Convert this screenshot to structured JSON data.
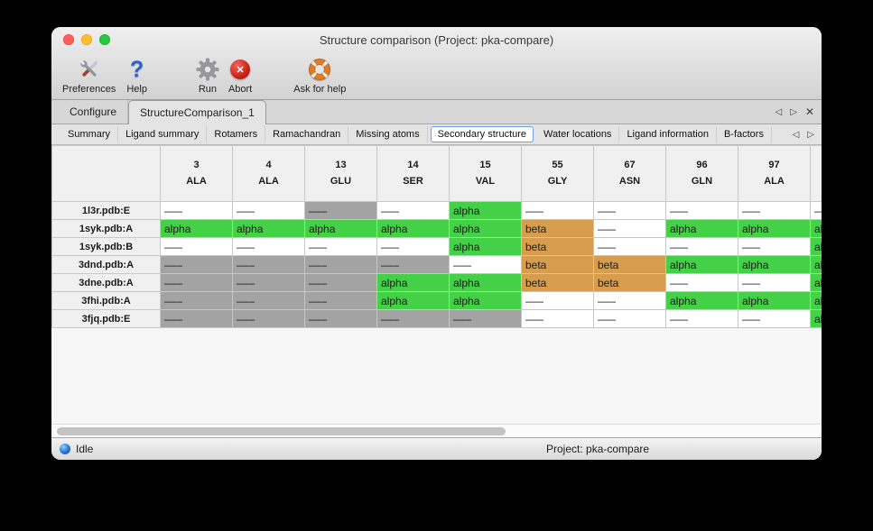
{
  "window": {
    "title": "Structure comparison (Project: pka-compare)"
  },
  "toolbar": {
    "items": [
      {
        "label": "Preferences"
      },
      {
        "label": "Help"
      },
      {
        "label": "Run"
      },
      {
        "label": "Abort"
      },
      {
        "label": "Ask for help"
      }
    ]
  },
  "tab_controls": {
    "prev": "◁",
    "next": "▷",
    "close": "✕"
  },
  "tabs": {
    "main": [
      {
        "label": "Configure",
        "active": false
      },
      {
        "label": "StructureComparison_1",
        "active": true
      }
    ],
    "sub": [
      {
        "label": "Summary",
        "active": false
      },
      {
        "label": "Ligand summary",
        "active": false
      },
      {
        "label": "Rotamers",
        "active": false
      },
      {
        "label": "Ramachandran",
        "active": false
      },
      {
        "label": "Missing atoms",
        "active": false
      },
      {
        "label": "Secondary structure",
        "active": true
      },
      {
        "label": "Water locations",
        "active": false
      },
      {
        "label": "Ligand information",
        "active": false
      },
      {
        "label": "B-factors",
        "active": false
      }
    ]
  },
  "colors": {
    "alpha_green": "#44d148",
    "beta_orange": "#d79d4e",
    "unassigned_gray": "#a3a3a3",
    "plain_white": "#ffffff",
    "active_subtab_border": "#6f9fe8"
  },
  "table": {
    "columns": [
      {
        "num": "3",
        "res": "ALA"
      },
      {
        "num": "4",
        "res": "ALA"
      },
      {
        "num": "13",
        "res": "GLU"
      },
      {
        "num": "14",
        "res": "SER"
      },
      {
        "num": "15",
        "res": "VAL"
      },
      {
        "num": "55",
        "res": "GLY"
      },
      {
        "num": "67",
        "res": "ASN"
      },
      {
        "num": "96",
        "res": "GLN"
      },
      {
        "num": "97",
        "res": "ALA"
      },
      {
        "num": "",
        "res": ""
      }
    ],
    "rows": [
      {
        "name": "1l3r.pdb:E",
        "cells": [
          [
            "–––",
            "plain"
          ],
          [
            "–––",
            "plain"
          ],
          [
            "–––",
            "gray"
          ],
          [
            "–––",
            "plain"
          ],
          [
            "alpha",
            "alpha"
          ],
          [
            "–––",
            "plain"
          ],
          [
            "–––",
            "plain"
          ],
          [
            "–––",
            "plain"
          ],
          [
            "–––",
            "plain"
          ],
          [
            "–––",
            "plain"
          ]
        ]
      },
      {
        "name": "1syk.pdb:A",
        "cells": [
          [
            "alpha",
            "alpha"
          ],
          [
            "alpha",
            "alpha"
          ],
          [
            "alpha",
            "alpha"
          ],
          [
            "alpha",
            "alpha"
          ],
          [
            "alpha",
            "alpha"
          ],
          [
            "beta",
            "beta"
          ],
          [
            "–––",
            "plain"
          ],
          [
            "alpha",
            "alpha"
          ],
          [
            "alpha",
            "alpha"
          ],
          [
            "alpha",
            "alpha"
          ]
        ]
      },
      {
        "name": "1syk.pdb:B",
        "cells": [
          [
            "–––",
            "plain"
          ],
          [
            "–––",
            "plain"
          ],
          [
            "–––",
            "plain"
          ],
          [
            "–––",
            "plain"
          ],
          [
            "alpha",
            "alpha"
          ],
          [
            "beta",
            "beta"
          ],
          [
            "–––",
            "plain"
          ],
          [
            "–––",
            "plain"
          ],
          [
            "–––",
            "plain"
          ],
          [
            "alpha",
            "alpha"
          ]
        ]
      },
      {
        "name": "3dnd.pdb:A",
        "cells": [
          [
            "–––",
            "gray"
          ],
          [
            "–––",
            "gray"
          ],
          [
            "–––",
            "gray"
          ],
          [
            "–––",
            "gray"
          ],
          [
            "–––",
            "plain"
          ],
          [
            "beta",
            "beta"
          ],
          [
            "beta",
            "beta"
          ],
          [
            "alpha",
            "alpha"
          ],
          [
            "alpha",
            "alpha"
          ],
          [
            "alpha",
            "alpha"
          ]
        ]
      },
      {
        "name": "3dne.pdb:A",
        "cells": [
          [
            "–––",
            "gray"
          ],
          [
            "–––",
            "gray"
          ],
          [
            "–––",
            "gray"
          ],
          [
            "alpha",
            "alpha"
          ],
          [
            "alpha",
            "alpha"
          ],
          [
            "beta",
            "beta"
          ],
          [
            "beta",
            "beta"
          ],
          [
            "–––",
            "plain"
          ],
          [
            "–––",
            "plain"
          ],
          [
            "alpha",
            "alpha"
          ]
        ]
      },
      {
        "name": "3fhi.pdb:A",
        "cells": [
          [
            "–––",
            "gray"
          ],
          [
            "–––",
            "gray"
          ],
          [
            "–––",
            "gray"
          ],
          [
            "alpha",
            "alpha"
          ],
          [
            "alpha",
            "alpha"
          ],
          [
            "–––",
            "plain"
          ],
          [
            "–––",
            "plain"
          ],
          [
            "alpha",
            "alpha"
          ],
          [
            "alpha",
            "alpha"
          ],
          [
            "alpha",
            "alpha"
          ]
        ]
      },
      {
        "name": "3fjq.pdb:E",
        "cells": [
          [
            "–––",
            "gray"
          ],
          [
            "–––",
            "gray"
          ],
          [
            "–––",
            "gray"
          ],
          [
            "–––",
            "gray"
          ],
          [
            "–––",
            "gray"
          ],
          [
            "–––",
            "plain"
          ],
          [
            "–––",
            "plain"
          ],
          [
            "–––",
            "plain"
          ],
          [
            "–––",
            "plain"
          ],
          [
            "alpha",
            "alpha"
          ]
        ]
      }
    ]
  },
  "statusbar": {
    "status": "Idle",
    "project": "Project: pka-compare"
  }
}
